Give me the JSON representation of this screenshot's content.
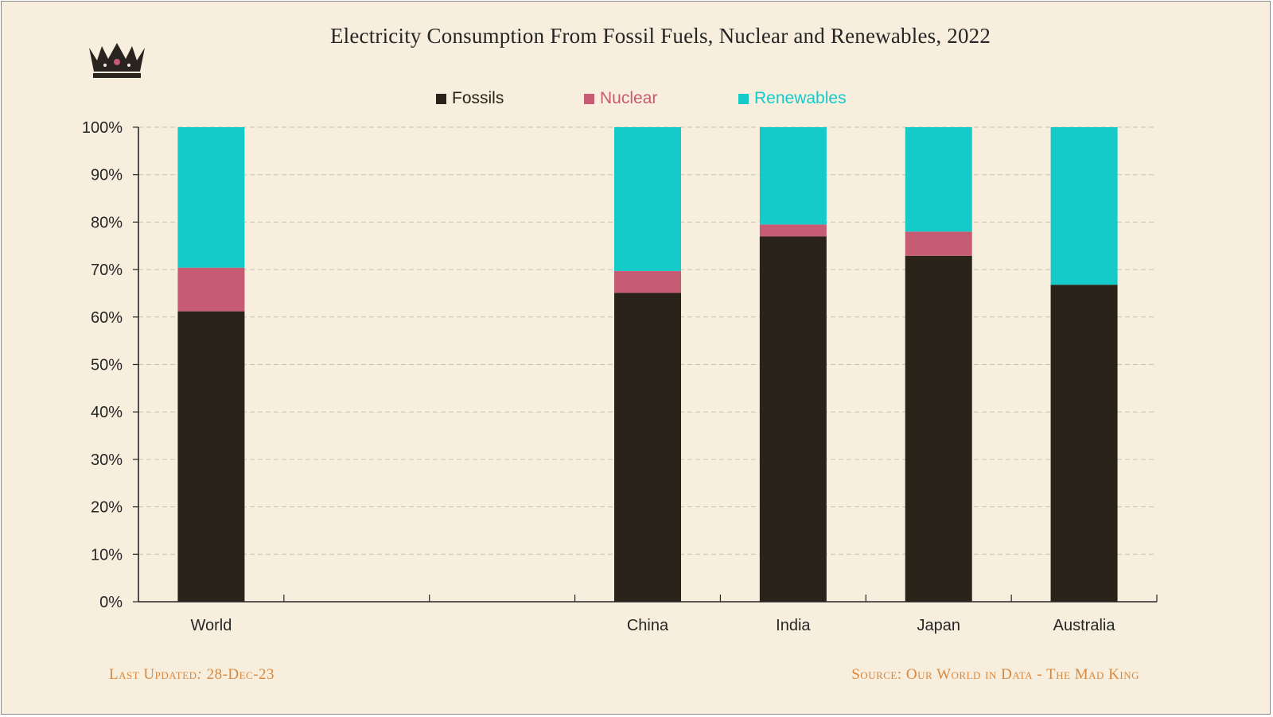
{
  "chart_data": {
    "type": "bar",
    "stacked": true,
    "title": "Electricity Consumption From Fossil Fuels, Nuclear and Renewables, 2022",
    "categories": [
      "World",
      "",
      "",
      "China",
      "India",
      "Japan",
      "Australia"
    ],
    "series": [
      {
        "name": "Fossils",
        "color": "#29231a",
        "values": [
          61.2,
          null,
          null,
          65.1,
          77.0,
          72.9,
          66.8
        ]
      },
      {
        "name": "Nuclear",
        "color": "#c65b74",
        "values": [
          9.2,
          null,
          null,
          4.6,
          2.5,
          5.1,
          0
        ]
      },
      {
        "name": "Renewables",
        "color": "#14cbca",
        "values": [
          29.6,
          null,
          null,
          30.3,
          20.5,
          22.0,
          33.2
        ]
      }
    ],
    "yticks": [
      "0%",
      "10%",
      "20%",
      "30%",
      "40%",
      "50%",
      "60%",
      "70%",
      "80%",
      "90%",
      "100%"
    ],
    "ylim": [
      0,
      100
    ],
    "grid": true,
    "legend": "top-center"
  },
  "footer": {
    "updated_label": "Last Updated",
    "updated_sep": ":",
    "updated_date": " 28-Dec-23",
    "source": "Source:  Our World in Data - The Mad King"
  },
  "logo_icon": "crown-icon"
}
